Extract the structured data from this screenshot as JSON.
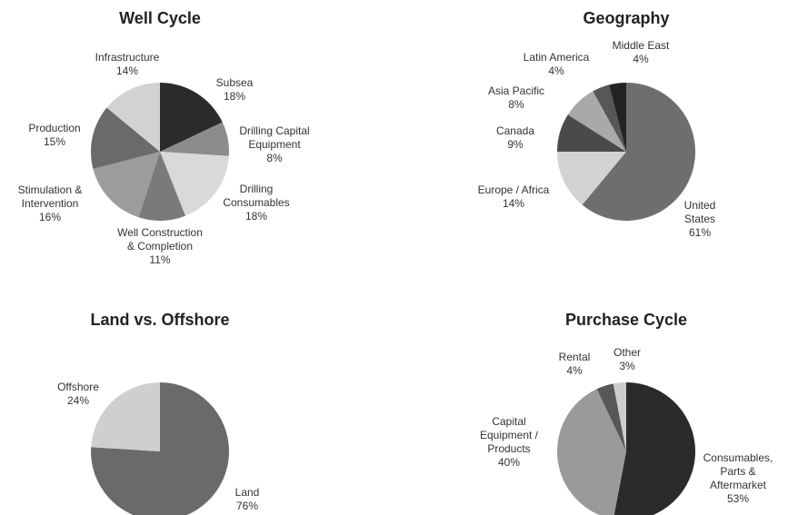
{
  "chart_data": [
    {
      "type": "pie",
      "title": "Well Cycle",
      "categories": [
        "Subsea",
        "Drilling Capital\nEquipment",
        "Drilling\nConsumables",
        "Well Construction\n& Completion",
        "Stimulation &\nIntervention",
        "Production",
        "Infrastructure"
      ],
      "values": [
        18,
        8,
        18,
        11,
        16,
        15,
        14
      ],
      "value_labels": [
        "18%",
        "8%",
        "18%",
        "11%",
        "16%",
        "15%",
        "14%"
      ],
      "colors": [
        "#2b2b2b",
        "#8c8c8c",
        "#d9d9d9",
        "#7a7a7a",
        "#9c9c9c",
        "#6a6a6a",
        "#d2d2d2"
      ]
    },
    {
      "type": "pie",
      "title": "Geography",
      "categories": [
        "United\nStates",
        "Europe / Africa",
        "Canada",
        "Asia Pacific",
        "Latin America",
        "Middle East"
      ],
      "values": [
        61,
        14,
        9,
        8,
        4,
        4
      ],
      "value_labels": [
        "61%",
        "14%",
        "9%",
        "8%",
        "4%",
        "4%"
      ],
      "colors": [
        "#6e6e6e",
        "#d3d3d3",
        "#4a4a4a",
        "#a9a9a9",
        "#575757",
        "#232323"
      ]
    },
    {
      "type": "pie",
      "title": "Land vs. Offshore",
      "categories": [
        "Land",
        "Offshore"
      ],
      "values": [
        76,
        24
      ],
      "value_labels": [
        "76%",
        "24%"
      ],
      "colors": [
        "#6a6a6a",
        "#cfcfcf"
      ]
    },
    {
      "type": "pie",
      "title": "Purchase Cycle",
      "categories": [
        "Consumables,\nParts &\nAftermarket",
        "Capital\nEquipment /\nProducts",
        "Rental",
        "Other"
      ],
      "values": [
        53,
        40,
        4,
        3
      ],
      "value_labels": [
        "53%",
        "40%",
        "4%",
        "3%"
      ],
      "colors": [
        "#2b2b2b",
        "#9a9a9a",
        "#575757",
        "#cdcdcd"
      ]
    }
  ]
}
